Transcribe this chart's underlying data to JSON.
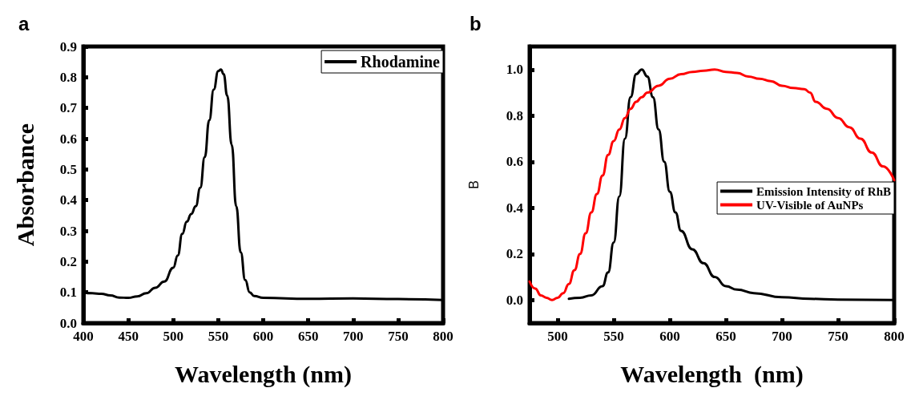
{
  "chart_data": [
    {
      "type": "line",
      "title": "a",
      "xlabel": "Wavelength (nm)",
      "ylabel": "Absorbance",
      "xlim": [
        400,
        800
      ],
      "ylim": [
        0,
        0.9
      ],
      "xticks": [
        400,
        450,
        500,
        550,
        600,
        650,
        700,
        750,
        800
      ],
      "yticks": [
        {
          "value": 0,
          "label": "0.0"
        },
        {
          "value": 0.1,
          "label": "0.1"
        },
        {
          "value": 0.2,
          "label": "0.2"
        },
        {
          "value": 0.3,
          "label": "0.3"
        },
        {
          "value": 0.4,
          "label": "0.4"
        },
        {
          "value": 0.5,
          "label": "0.5"
        },
        {
          "value": 0.6,
          "label": "0.6"
        },
        {
          "value": 0.7,
          "label": "0.7"
        },
        {
          "value": 0.8,
          "label": "0.8"
        },
        {
          "value": 0.9,
          "label": "0.9"
        }
      ],
      "grid": false,
      "legend": "top right",
      "marker": "none",
      "line_style": "solid",
      "series": [
        {
          "name": "Rhodamine",
          "color": "#000000",
          "x": [
            400,
            410,
            420,
            430,
            440,
            450,
            460,
            470,
            480,
            490,
            500,
            505,
            510,
            515,
            520,
            525,
            530,
            535,
            540,
            545,
            550,
            553,
            556,
            560,
            565,
            570,
            575,
            580,
            585,
            590,
            600,
            650,
            700,
            750,
            800
          ],
          "values": [
            0.1,
            0.097,
            0.095,
            0.09,
            0.083,
            0.082,
            0.087,
            0.097,
            0.115,
            0.135,
            0.18,
            0.22,
            0.29,
            0.33,
            0.355,
            0.38,
            0.44,
            0.54,
            0.66,
            0.76,
            0.82,
            0.825,
            0.81,
            0.74,
            0.58,
            0.38,
            0.23,
            0.14,
            0.1,
            0.088,
            0.082,
            0.079,
            0.08,
            0.078,
            0.075
          ]
        }
      ]
    },
    {
      "type": "line",
      "title": "b",
      "xlabel": "Wavelength  (nm)",
      "ylabel": "B",
      "xlim": [
        475,
        800
      ],
      "ylim": [
        -0.1,
        1.1
      ],
      "xticks": [
        500,
        550,
        600,
        650,
        700,
        750,
        800
      ],
      "yticks": [
        {
          "value": 0,
          "label": "0.0"
        },
        {
          "value": 0.2,
          "label": "0.2"
        },
        {
          "value": 0.4,
          "label": "0.4"
        },
        {
          "value": 0.6,
          "label": "0.6"
        },
        {
          "value": 0.8,
          "label": "0.8"
        },
        {
          "value": 1,
          "label": "1.0"
        }
      ],
      "grid": false,
      "legend": "right",
      "marker": "none",
      "line_style": "solid",
      "series": [
        {
          "name": "Emission Intensity of RhB",
          "color": "#000000",
          "x": [
            510,
            520,
            530,
            540,
            545,
            550,
            555,
            560,
            565,
            570,
            575,
            580,
            585,
            590,
            595,
            600,
            605,
            610,
            620,
            630,
            640,
            650,
            660,
            675,
            700,
            725,
            750,
            800
          ],
          "values": [
            0.005,
            0.01,
            0.02,
            0.06,
            0.12,
            0.25,
            0.45,
            0.7,
            0.88,
            0.98,
            1.0,
            0.97,
            0.88,
            0.74,
            0.6,
            0.47,
            0.38,
            0.3,
            0.22,
            0.16,
            0.1,
            0.06,
            0.045,
            0.03,
            0.012,
            0.005,
            0.002,
            0
          ]
        },
        {
          "name": "UV-Visible of AuNPs",
          "color": "#ff0000",
          "x": [
            475,
            480,
            485,
            490,
            495,
            500,
            505,
            510,
            515,
            520,
            525,
            530,
            535,
            540,
            545,
            550,
            555,
            560,
            565,
            570,
            575,
            580,
            590,
            600,
            610,
            620,
            630,
            640,
            650,
            660,
            670,
            680,
            690,
            700,
            710,
            720,
            725,
            730,
            740,
            750,
            760,
            770,
            780,
            790,
            800
          ],
          "values": [
            0.08,
            0.05,
            0.02,
            0.01,
            0.0,
            0.01,
            0.03,
            0.07,
            0.13,
            0.2,
            0.29,
            0.38,
            0.46,
            0.54,
            0.63,
            0.69,
            0.74,
            0.79,
            0.83,
            0.86,
            0.88,
            0.9,
            0.93,
            0.96,
            0.98,
            0.99,
            0.995,
            1.0,
            0.99,
            0.985,
            0.97,
            0.96,
            0.95,
            0.93,
            0.92,
            0.915,
            0.9,
            0.86,
            0.83,
            0.79,
            0.75,
            0.7,
            0.64,
            0.58,
            0.52
          ]
        }
      ]
    }
  ]
}
